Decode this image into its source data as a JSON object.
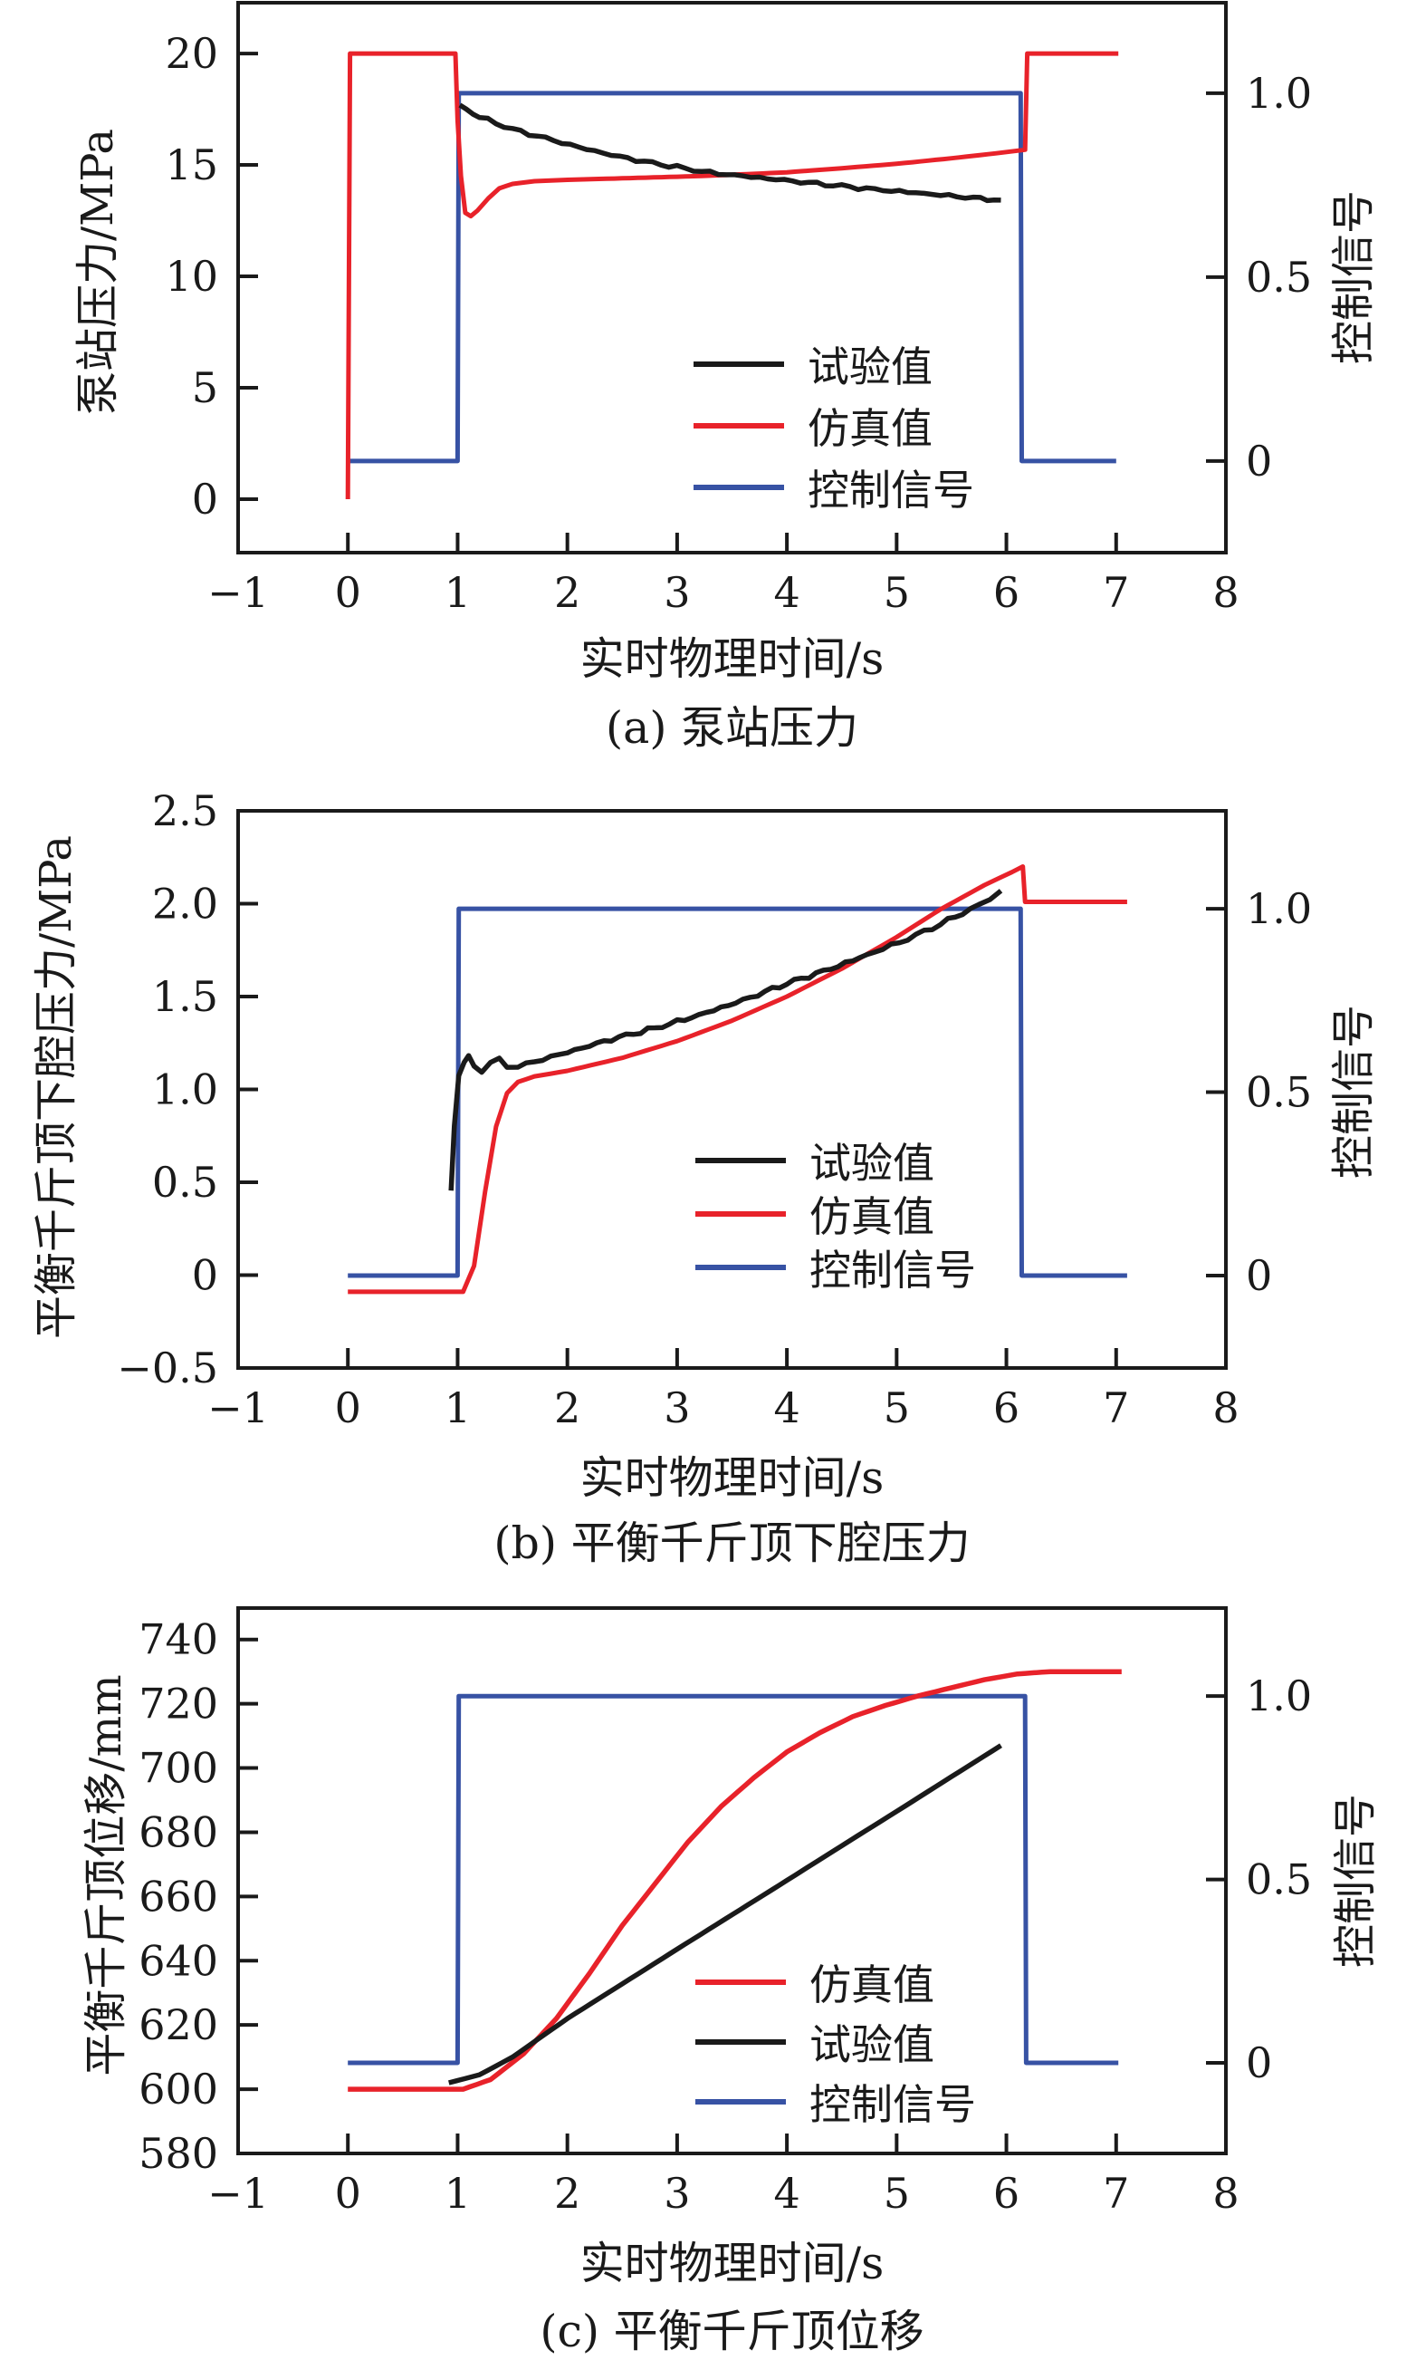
{
  "figure": {
    "background": "#ffffff",
    "text_color": "#1a1a1a",
    "accent_colors": {
      "test_black": "#1a1a1a",
      "simulation_red": "#e8222a",
      "signal_blue": "#3752a4"
    }
  },
  "chart_data": [
    {
      "id": "a",
      "type": "line",
      "caption": "(a) 泵站压力",
      "xlabel": "实时物理时间/s",
      "ylabel": "泵站压力/MPa",
      "y2label": "控制信号",
      "grid": false,
      "legend_position": "inside-center-right",
      "xlim": [
        -1,
        8
      ],
      "xticks": {
        "values": [
          -1,
          0,
          1,
          2,
          3,
          4,
          5,
          6,
          7,
          8
        ],
        "labels": [
          "−1",
          "0",
          "1",
          "2",
          "3",
          "4",
          "5",
          "6",
          "7",
          "8"
        ]
      },
      "ylim": [
        -2.4,
        22.28
      ],
      "yticks": {
        "values": [
          0,
          5,
          10,
          15,
          20
        ],
        "labels": [
          "0",
          "5",
          "10",
          "15",
          "20"
        ]
      },
      "y2lim": [
        -0.249,
        1.246
      ],
      "y2ticks": {
        "values": [
          0,
          0.5,
          1
        ],
        "labels": [
          "0",
          "0.5",
          "1.0"
        ]
      },
      "legend": [
        {
          "label": "试验值"
        },
        {
          "label": "仿真值"
        },
        {
          "label": "控制信号"
        }
      ],
      "series": [
        {
          "name": "控制信号",
          "axis": "right",
          "color": "#3752a4",
          "width": 5,
          "noise": 0,
          "points": [
            [
              0,
              0
            ],
            [
              1,
              0
            ],
            [
              1.01,
              1
            ],
            [
              6.13,
              1
            ],
            [
              6.14,
              0
            ],
            [
              7.0,
              0
            ]
          ]
        },
        {
          "name": "仿真值",
          "axis": "left",
          "color": "#e8222a",
          "width": 5,
          "noise": 0,
          "points": [
            [
              0,
              0
            ],
            [
              0.02,
              20
            ],
            [
              0.98,
              20
            ],
            [
              1.0,
              17.0
            ],
            [
              1.03,
              14.5
            ],
            [
              1.07,
              12.85
            ],
            [
              1.12,
              12.7
            ],
            [
              1.18,
              12.95
            ],
            [
              1.28,
              13.5
            ],
            [
              1.38,
              13.95
            ],
            [
              1.5,
              14.15
            ],
            [
              1.7,
              14.27
            ],
            [
              2,
              14.33
            ],
            [
              2.5,
              14.4
            ],
            [
              3,
              14.47
            ],
            [
              3.3,
              14.52
            ],
            [
              3.7,
              14.6
            ],
            [
              4,
              14.67
            ],
            [
              4.5,
              14.85
            ],
            [
              5,
              15.05
            ],
            [
              5.5,
              15.3
            ],
            [
              5.9,
              15.52
            ],
            [
              6.17,
              15.68
            ],
            [
              6.19,
              20
            ],
            [
              7.02,
              20
            ]
          ]
        },
        {
          "name": "试验值",
          "axis": "left",
          "color": "#1a1a1a",
          "width": 5.5,
          "noise": 0.09,
          "points": [
            [
              1.02,
              17.65
            ],
            [
              1.2,
              17.15
            ],
            [
              1.5,
              16.6
            ],
            [
              1.8,
              16.2
            ],
            [
              2.1,
              15.8
            ],
            [
              2.4,
              15.45
            ],
            [
              2.7,
              15.15
            ],
            [
              3.0,
              14.9
            ],
            [
              3.3,
              14.65
            ],
            [
              3.6,
              14.5
            ],
            [
              3.9,
              14.35
            ],
            [
              4.2,
              14.2
            ],
            [
              4.5,
              14.05
            ],
            [
              4.8,
              13.9
            ],
            [
              5.1,
              13.78
            ],
            [
              5.4,
              13.65
            ],
            [
              5.7,
              13.52
            ],
            [
              5.95,
              13.42
            ]
          ]
        }
      ]
    },
    {
      "id": "b",
      "type": "line",
      "caption": "(b) 平衡千斤顶下腔压力",
      "xlabel": "实时物理时间/s",
      "ylabel": "平衡千斤顶下腔压力/MPa",
      "y2label": "控制信号",
      "grid": false,
      "legend_position": "inside-center-right",
      "xlim": [
        -1,
        8
      ],
      "xticks": {
        "values": [
          -1,
          0,
          1,
          2,
          3,
          4,
          5,
          6,
          7,
          8
        ],
        "labels": [
          "−1",
          "0",
          "1",
          "2",
          "3",
          "4",
          "5",
          "6",
          "7",
          "8"
        ]
      },
      "ylim": [
        -0.5,
        2.5
      ],
      "yticks": {
        "values": [
          -0.5,
          0,
          0.5,
          1,
          1.5,
          2,
          2.5
        ],
        "labels": [
          "−0.5",
          "0",
          "0.5",
          "1.0",
          "1.5",
          "2.0",
          "2.5"
        ]
      },
      "y2lim": [
        -0.252,
        1.267
      ],
      "y2ticks": {
        "values": [
          0,
          0.5,
          1
        ],
        "labels": [
          "0",
          "0.5",
          "1.0"
        ]
      },
      "legend": [
        {
          "label": "试验值"
        },
        {
          "label": "仿真值"
        },
        {
          "label": "控制信号"
        }
      ],
      "series": [
        {
          "name": "控制信号",
          "axis": "right",
          "color": "#3752a4",
          "width": 5,
          "noise": 0,
          "points": [
            [
              0,
              0
            ],
            [
              1,
              0
            ],
            [
              1.01,
              1
            ],
            [
              6.13,
              1
            ],
            [
              6.14,
              0
            ],
            [
              7.1,
              0
            ]
          ]
        },
        {
          "name": "仿真值",
          "axis": "left",
          "color": "#e8222a",
          "width": 5,
          "noise": 0,
          "points": [
            [
              0,
              -0.09
            ],
            [
              1.05,
              -0.09
            ],
            [
              1.15,
              0.05
            ],
            [
              1.25,
              0.45
            ],
            [
              1.35,
              0.8
            ],
            [
              1.45,
              0.98
            ],
            [
              1.55,
              1.04
            ],
            [
              1.7,
              1.07
            ],
            [
              2,
              1.1
            ],
            [
              2.5,
              1.17
            ],
            [
              3,
              1.26
            ],
            [
              3.5,
              1.37
            ],
            [
              4,
              1.5
            ],
            [
              4.5,
              1.65
            ],
            [
              5,
              1.82
            ],
            [
              5.4,
              1.97
            ],
            [
              5.8,
              2.1
            ],
            [
              6.05,
              2.17
            ],
            [
              6.15,
              2.2
            ],
            [
              6.17,
              2.01
            ],
            [
              7.1,
              2.01
            ]
          ]
        },
        {
          "name": "试验值",
          "axis": "left",
          "color": "#1a1a1a",
          "width": 5.5,
          "noise": 0.013,
          "points": [
            [
              0.94,
              0.45
            ],
            [
              0.97,
              0.8
            ],
            [
              1.01,
              1.08
            ],
            [
              1.06,
              1.15
            ],
            [
              1.1,
              1.17
            ],
            [
              1.15,
              1.13
            ],
            [
              1.22,
              1.1
            ],
            [
              1.3,
              1.14
            ],
            [
              1.38,
              1.16
            ],
            [
              1.45,
              1.13
            ],
            [
              1.55,
              1.12
            ],
            [
              1.7,
              1.15
            ],
            [
              2,
              1.2
            ],
            [
              2.4,
              1.27
            ],
            [
              2.8,
              1.33
            ],
            [
              3.2,
              1.4
            ],
            [
              3.6,
              1.48
            ],
            [
              4,
              1.57
            ],
            [
              4.4,
              1.65
            ],
            [
              4.8,
              1.74
            ],
            [
              5.1,
              1.81
            ],
            [
              5.4,
              1.89
            ],
            [
              5.6,
              1.95
            ],
            [
              5.75,
              1.99
            ],
            [
              5.85,
              2.03
            ],
            [
              5.95,
              2.07
            ]
          ]
        }
      ]
    },
    {
      "id": "c",
      "type": "line",
      "caption": "(c) 平衡千斤顶位移",
      "xlabel": "实时物理时间/s",
      "ylabel": "平衡千斤顶位移/mm",
      "y2label": "控制信号",
      "grid": false,
      "legend_position": "inside-center-right",
      "xlim": [
        -1,
        8
      ],
      "xticks": {
        "values": [
          -1,
          0,
          1,
          2,
          3,
          4,
          5,
          6,
          7,
          8
        ],
        "labels": [
          "−1",
          "0",
          "1",
          "2",
          "3",
          "4",
          "5",
          "6",
          "7",
          "8"
        ]
      },
      "ylim": [
        580,
        749.8
      ],
      "yticks": {
        "values": [
          580,
          600,
          620,
          640,
          660,
          680,
          700,
          720,
          740
        ],
        "labels": [
          "580",
          "600",
          "620",
          "640",
          "660",
          "680",
          "700",
          "720",
          "740"
        ]
      },
      "y2lim": [
        -0.247,
        1.24
      ],
      "y2ticks": {
        "values": [
          0,
          0.5,
          1
        ],
        "labels": [
          "0",
          "0.5",
          "1.0"
        ]
      },
      "legend": [
        {
          "label": "仿真值"
        },
        {
          "label": "试验值"
        },
        {
          "label": "控制信号"
        }
      ],
      "series": [
        {
          "name": "控制信号",
          "axis": "right",
          "color": "#3752a4",
          "width": 5,
          "noise": 0,
          "points": [
            [
              0,
              0
            ],
            [
              1,
              0
            ],
            [
              1.01,
              1
            ],
            [
              6.17,
              1
            ],
            [
              6.18,
              0
            ],
            [
              7.02,
              0
            ]
          ]
        },
        {
          "name": "仿真值",
          "axis": "left",
          "color": "#e8222a",
          "width": 5.5,
          "noise": 0,
          "points": [
            [
              0,
              600
            ],
            [
              1.05,
              600
            ],
            [
              1.3,
              603
            ],
            [
              1.6,
              611
            ],
            [
              1.9,
              622
            ],
            [
              2.2,
              636
            ],
            [
              2.5,
              651
            ],
            [
              2.8,
              664
            ],
            [
              3.1,
              677
            ],
            [
              3.4,
              688
            ],
            [
              3.7,
              697
            ],
            [
              4.0,
              705
            ],
            [
              4.3,
              711
            ],
            [
              4.6,
              716
            ],
            [
              4.9,
              719.5
            ],
            [
              5.2,
              722.5
            ],
            [
              5.5,
              725
            ],
            [
              5.8,
              727.5
            ],
            [
              6.1,
              729.3
            ],
            [
              6.4,
              730
            ],
            [
              7.05,
              730
            ]
          ]
        },
        {
          "name": "试验值",
          "axis": "left",
          "color": "#1a1a1a",
          "width": 5.5,
          "noise": 0,
          "points": [
            [
              0.92,
              602
            ],
            [
              1.2,
              604.5
            ],
            [
              1.5,
              610
            ],
            [
              2,
              622
            ],
            [
              2.5,
              632.8
            ],
            [
              3,
              643.6
            ],
            [
              3.5,
              654.3
            ],
            [
              4,
              665
            ],
            [
              4.5,
              675.8
            ],
            [
              5,
              686.5
            ],
            [
              5.5,
              697.3
            ],
            [
              5.95,
              707
            ]
          ]
        }
      ]
    }
  ]
}
